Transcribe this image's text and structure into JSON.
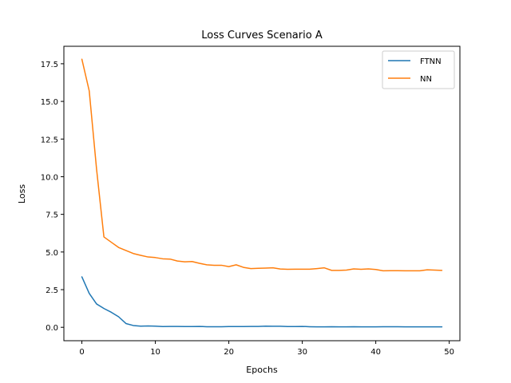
{
  "chart_data": {
    "type": "line",
    "title": "Loss Curves Scenario A",
    "xlabel": "Epochs",
    "ylabel": "Loss",
    "xlim": [
      -2.45,
      51.45
    ],
    "ylim": [
      -0.89,
      18.66
    ],
    "xticks": [
      0,
      10,
      20,
      30,
      40,
      50
    ],
    "yticks": [
      0.0,
      2.5,
      5.0,
      7.5,
      10.0,
      12.5,
      15.0,
      17.5
    ],
    "ytick_labels": [
      "0.0",
      "2.5",
      "5.0",
      "7.5",
      "10.0",
      "12.5",
      "15.0",
      "17.5"
    ],
    "grid": false,
    "legend_position": "top-right",
    "x": [
      0,
      1,
      2,
      3,
      4,
      5,
      6,
      7,
      8,
      9,
      10,
      11,
      12,
      13,
      14,
      15,
      16,
      17,
      18,
      19,
      20,
      21,
      22,
      23,
      24,
      25,
      26,
      27,
      28,
      29,
      30,
      31,
      32,
      33,
      34,
      35,
      36,
      37,
      38,
      39,
      40,
      41,
      42,
      43,
      44,
      45,
      46,
      47,
      48,
      49
    ],
    "series": [
      {
        "name": "FTNN",
        "color": "#1f77b4",
        "values": [
          3.35,
          2.25,
          1.55,
          1.25,
          1.0,
          0.7,
          0.25,
          0.12,
          0.08,
          0.09,
          0.08,
          0.05,
          0.06,
          0.06,
          0.05,
          0.05,
          0.06,
          0.04,
          0.04,
          0.04,
          0.05,
          0.05,
          0.05,
          0.06,
          0.06,
          0.08,
          0.07,
          0.07,
          0.05,
          0.05,
          0.06,
          0.04,
          0.03,
          0.03,
          0.04,
          0.03,
          0.03,
          0.04,
          0.03,
          0.03,
          0.03,
          0.04,
          0.04,
          0.04,
          0.03,
          0.03,
          0.03,
          0.03,
          0.03,
          0.03
        ]
      },
      {
        "name": "NN",
        "color": "#ff7f0e",
        "values": [
          17.8,
          15.7,
          10.5,
          6.0,
          5.65,
          5.3,
          5.1,
          4.9,
          4.78,
          4.67,
          4.63,
          4.55,
          4.53,
          4.4,
          4.35,
          4.37,
          4.25,
          4.15,
          4.12,
          4.12,
          4.03,
          4.15,
          3.98,
          3.9,
          3.92,
          3.93,
          3.95,
          3.87,
          3.85,
          3.86,
          3.86,
          3.86,
          3.9,
          3.95,
          3.78,
          3.78,
          3.8,
          3.88,
          3.85,
          3.88,
          3.84,
          3.75,
          3.76,
          3.76,
          3.75,
          3.75,
          3.75,
          3.82,
          3.8,
          3.78
        ]
      }
    ]
  }
}
